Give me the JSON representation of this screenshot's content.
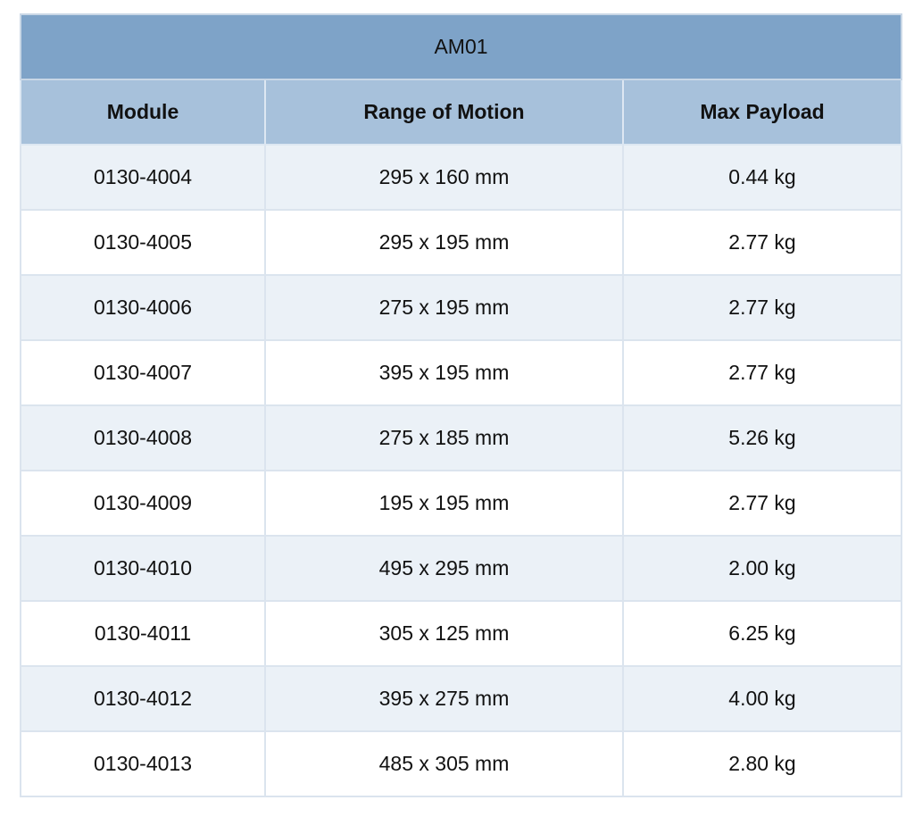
{
  "table": {
    "title": "AM01",
    "headers": [
      "Module",
      "Range of Motion",
      "Max Payload"
    ],
    "rows": [
      [
        "0130-4004",
        "295 x 160 mm",
        "0.44 kg"
      ],
      [
        "0130-4005",
        "295 x 195 mm",
        "2.77 kg"
      ],
      [
        "0130-4006",
        "275 x 195 mm",
        "2.77 kg"
      ],
      [
        "0130-4007",
        "395 x 195 mm",
        "2.77 kg"
      ],
      [
        "0130-4008",
        "275 x 185 mm",
        "5.26 kg"
      ],
      [
        "0130-4009",
        "195 x 195 mm",
        "2.77 kg"
      ],
      [
        "0130-4010",
        "495 x 295 mm",
        "2.00 kg"
      ],
      [
        "0130-4011",
        "305 x 125 mm",
        "6.25 kg"
      ],
      [
        "0130-4012",
        "395 x 275 mm",
        "4.00 kg"
      ],
      [
        "0130-4013",
        "485 x 305 mm",
        "2.80 kg"
      ]
    ]
  },
  "colors": {
    "title_bg": "#7ea3c8",
    "header_bg": "#a7c1db",
    "row_alt_bg": "#ebf1f7",
    "row_bg": "#ffffff"
  }
}
